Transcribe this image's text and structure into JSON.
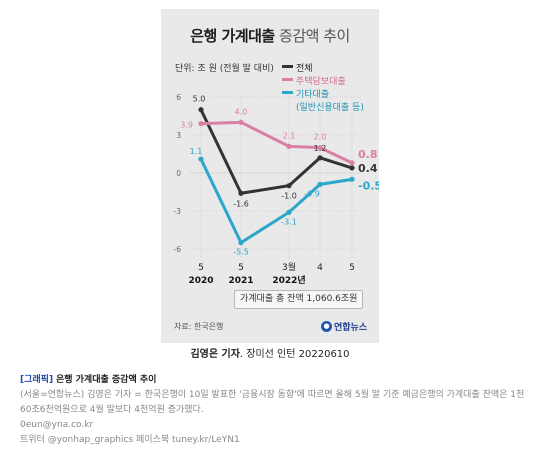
{
  "card": {
    "title_bold": "은행 가계대출",
    "title_light": "증감액 추이",
    "unit_label": "단위: 조 원 (전월 말 대비)",
    "total_note": "가계대출 총 잔액 1,060.6조원",
    "source": "자료: 한국은행",
    "logo_text": "연합뉴스"
  },
  "legend": [
    {
      "label": "전체",
      "color": "#333333"
    },
    {
      "label": "주택담보대출",
      "color": "#d97fa6"
    },
    {
      "label": "기타대출",
      "sub": "(일반신용대출 등)",
      "color": "#2aa7c9"
    }
  ],
  "credit": {
    "name": "김영은 기자",
    "rest": ". 장미선 인턴  20220610"
  },
  "caption": {
    "head_prefix": "[그래픽]",
    "head_text": "은행 가계대출 증감액 추이",
    "body": "(서울=연합뉴스) 김영은 기자 = 한국은행이 10일 발표한 '금융시장 동향'에 따르면 올해 5월 말 기준 예금은행의 가계대출 잔액은 1천60조6천억원으로 4월 말보다 4천억원 증가했다.",
    "email": "0eun@yna.co.kr",
    "social": "트위터 @yonhap_graphics 페이스북 tuney.kr/LeYN1"
  },
  "chart_data": {
    "type": "line",
    "categories": [
      "2020-05",
      "2021-05",
      "2022-03",
      "2022-04",
      "2022-05"
    ],
    "x_tick_labels": [
      "5",
      "5",
      "3월",
      "4",
      "5"
    ],
    "x_year_labels": [
      {
        "index": 0,
        "text": "2020"
      },
      {
        "index": 1,
        "text": "2021"
      },
      {
        "index": 2,
        "text": "2022년"
      }
    ],
    "ylim": [
      -6,
      6
    ],
    "yticks": [
      6,
      3,
      0,
      -3,
      -6
    ],
    "grid": true,
    "legend_position": "top-right",
    "series": [
      {
        "name": "전체",
        "color": "#333333",
        "values": [
          5.0,
          -1.6,
          -1.0,
          1.2,
          0.4
        ],
        "labels": [
          "5.0",
          "-1.6",
          "-1.0",
          "1.2",
          "0.4"
        ]
      },
      {
        "name": "주택담보대출",
        "color": "#d97fa6",
        "values": [
          3.9,
          4.0,
          2.1,
          2.0,
          0.8
        ],
        "labels": [
          "3.9",
          "4.0",
          "2.1",
          "2.0",
          "0.8"
        ]
      },
      {
        "name": "기타대출",
        "color": "#2aa7c9",
        "values": [
          1.1,
          -5.5,
          -3.1,
          -0.9,
          -0.5
        ],
        "labels": [
          "1.1",
          "-5.5",
          "-3.1",
          "-0.9",
          "-0.5"
        ]
      }
    ]
  }
}
